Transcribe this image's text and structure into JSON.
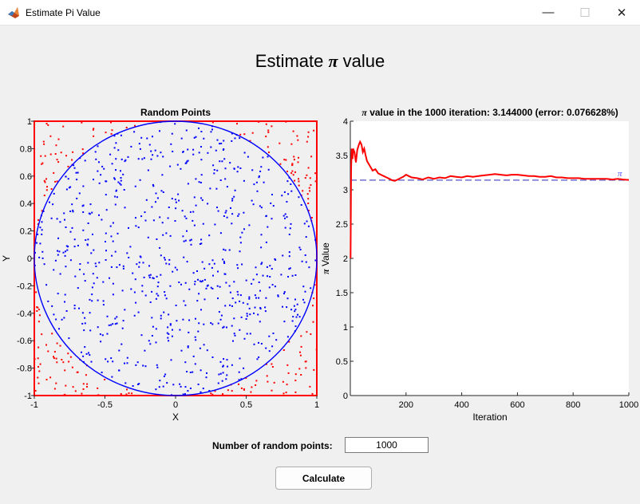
{
  "window": {
    "title": "Estimate Pi Value",
    "minimize_glyph": "—",
    "maximize_glyph": "☐",
    "close_glyph": "✕",
    "app_icon": "matlab-icon"
  },
  "page": {
    "heading_pre": "Estimate ",
    "heading_symbol": "π",
    "heading_post": " value"
  },
  "controls": {
    "points_label": "Number of random points:",
    "points_value": "1000",
    "calculate_label": "Calculate"
  },
  "colors": {
    "inside": "#0000ff",
    "outside": "#ff0000",
    "circle": "#0000ff",
    "box": "#ff0000",
    "pi_line": "#7070d0",
    "estimate": "#ff0000"
  },
  "chart_data": [
    {
      "type": "scatter",
      "title": "Random Points",
      "xlabel": "X",
      "ylabel": "Y",
      "xlim": [
        -1,
        1
      ],
      "ylim": [
        -1,
        1
      ],
      "xticks": [
        "-1",
        "-0.5",
        "0",
        "0.5",
        "1"
      ],
      "yticks": [
        "-1",
        "-0.8",
        "-0.6",
        "-0.4",
        "-0.2",
        "0",
        "0.2",
        "0.4",
        "0.6",
        "0.8",
        "1"
      ],
      "n_points": 1000,
      "series": [
        {
          "name": "inside circle",
          "color": "#0000ff"
        },
        {
          "name": "outside circle",
          "color": "#ff0000"
        }
      ],
      "overlays": [
        "unit circle",
        "square [-1,1]"
      ]
    },
    {
      "type": "line",
      "title_pre": "π",
      "title_post": " value in the 1000 iteration: 3.144000 (error: 0.076628%)",
      "xlabel": "Iteration",
      "ylabel_pre": "π",
      "ylabel_post": " Value",
      "xlim": [
        0,
        1000
      ],
      "ylim": [
        0,
        4
      ],
      "xticks": [
        "200",
        "400",
        "600",
        "800",
        "1000"
      ],
      "yticks": [
        "0",
        "0.5",
        "1",
        "1.5",
        "2",
        "2.5",
        "3",
        "3.5",
        "4"
      ],
      "reference_value": 3.14159,
      "reference_label": "π",
      "series": [
        {
          "name": "estimate",
          "x": [
            1,
            3,
            5,
            8,
            10,
            15,
            20,
            25,
            30,
            35,
            40,
            45,
            50,
            55,
            60,
            70,
            80,
            90,
            100,
            110,
            120,
            130,
            140,
            150,
            160,
            170,
            180,
            190,
            200,
            210,
            220,
            240,
            260,
            280,
            300,
            320,
            340,
            360,
            380,
            400,
            420,
            440,
            460,
            480,
            500,
            520,
            540,
            560,
            580,
            600,
            620,
            640,
            660,
            680,
            700,
            720,
            740,
            760,
            780,
            800,
            820,
            840,
            860,
            880,
            900,
            920,
            940,
            960,
            980,
            1000
          ],
          "y": [
            2.0,
            3.3,
            3.6,
            3.45,
            3.6,
            3.55,
            3.4,
            3.58,
            3.65,
            3.7,
            3.66,
            3.55,
            3.6,
            3.5,
            3.42,
            3.35,
            3.28,
            3.3,
            3.24,
            3.22,
            3.2,
            3.18,
            3.16,
            3.14,
            3.13,
            3.15,
            3.17,
            3.19,
            3.22,
            3.2,
            3.18,
            3.17,
            3.15,
            3.18,
            3.16,
            3.18,
            3.17,
            3.2,
            3.19,
            3.18,
            3.2,
            3.19,
            3.2,
            3.21,
            3.22,
            3.23,
            3.22,
            3.21,
            3.22,
            3.22,
            3.21,
            3.2,
            3.2,
            3.19,
            3.19,
            3.2,
            3.18,
            3.18,
            3.17,
            3.17,
            3.17,
            3.16,
            3.16,
            3.16,
            3.16,
            3.16,
            3.15,
            3.16,
            3.15,
            3.144
          ]
        }
      ]
    }
  ]
}
